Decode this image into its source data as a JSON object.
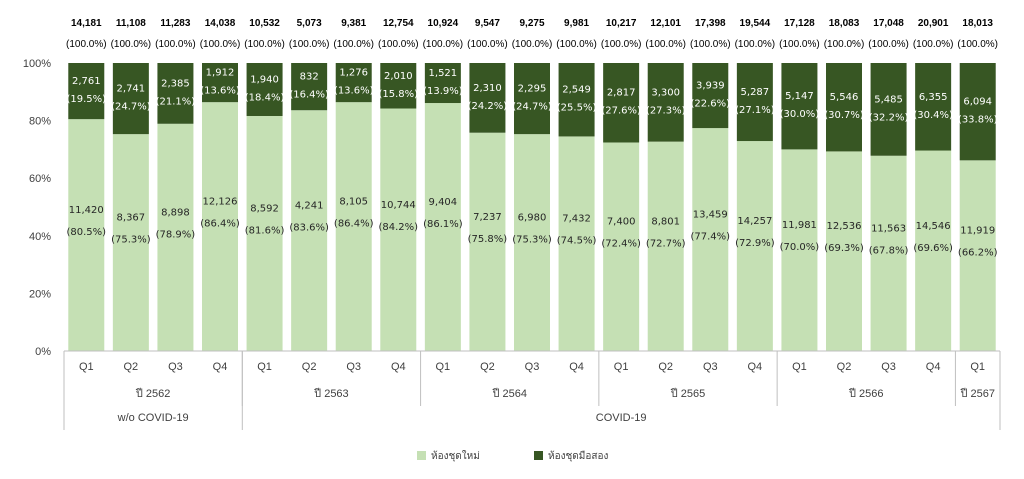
{
  "chart_data": {
    "type": "bar",
    "stacked": "percent",
    "ylim": [
      0,
      100
    ],
    "yticks": [
      "0%",
      "20%",
      "40%",
      "60%",
      "80%",
      "100%"
    ],
    "grid": false,
    "legend_position": "bottom",
    "categories": [
      "Q1",
      "Q2",
      "Q3",
      "Q4",
      "Q1",
      "Q2",
      "Q3",
      "Q4",
      "Q1",
      "Q2",
      "Q3",
      "Q4",
      "Q1",
      "Q2",
      "Q3",
      "Q4",
      "Q1",
      "Q2",
      "Q3",
      "Q4",
      "Q1"
    ],
    "year_groups": [
      {
        "label": "ปี 2562",
        "span": 4
      },
      {
        "label": "ปี 2563",
        "span": 4
      },
      {
        "label": "ปี 2564",
        "span": 4
      },
      {
        "label": "ปี 2565",
        "span": 4
      },
      {
        "label": "ปี 2566",
        "span": 4
      },
      {
        "label": "ปี 2567",
        "span": 1
      }
    ],
    "period_groups": [
      {
        "label": "w/o COVID-19",
        "span": 4
      },
      {
        "label": "COVID-19",
        "span": 17
      }
    ],
    "totals": [
      "14,181",
      "11,108",
      "11,283",
      "14,038",
      "10,532",
      "5,073",
      "9,381",
      "12,754",
      "10,924",
      "9,547",
      "9,275",
      "9,981",
      "10,217",
      "12,101",
      "17,398",
      "19,544",
      "17,128",
      "18,083",
      "17,048",
      "20,901",
      "18,013"
    ],
    "total_pct_label": "(100.0%)",
    "series": [
      {
        "name": "ห้องชุดใหม่",
        "color": "#c5e0b4",
        "values": [
          11420,
          8367,
          8898,
          12126,
          8592,
          4241,
          8105,
          10744,
          9404,
          7237,
          6980,
          7432,
          7400,
          8801,
          13459,
          14257,
          11981,
          12536,
          11563,
          14546,
          11919
        ],
        "labels": [
          "11,420",
          "8,367",
          "8,898",
          "12,126",
          "8,592",
          "4,241",
          "8,105",
          "10,744",
          "9,404",
          "7,237",
          "6,980",
          "7,432",
          "7,400",
          "8,801",
          "13,459",
          "14,257",
          "11,981",
          "12,536",
          "11,563",
          "14,546",
          "11,919"
        ],
        "pct": [
          80.5,
          75.3,
          78.9,
          86.4,
          81.6,
          83.6,
          86.4,
          84.2,
          86.1,
          75.8,
          75.3,
          74.5,
          72.4,
          72.7,
          77.4,
          72.9,
          70.0,
          69.3,
          67.8,
          69.6,
          66.2
        ],
        "pct_labels": [
          "(80.5%)",
          "(75.3%)",
          "(78.9%)",
          "(86.4%)",
          "(81.6%)",
          "(83.6%)",
          "(86.4%)",
          "(84.2%)",
          "(86.1%)",
          "(75.8%)",
          "(75.3%)",
          "(74.5%)",
          "(72.4%)",
          "(72.7%)",
          "(77.4%)",
          "(72.9%)",
          "(70.0%)",
          "(69.3%)",
          "(67.8%)",
          "(69.6%)",
          "(66.2%)"
        ]
      },
      {
        "name": "ห้องชุดมือสอง",
        "color": "#375623",
        "values": [
          2761,
          2741,
          2385,
          1912,
          1940,
          832,
          1276,
          2010,
          1521,
          2310,
          2295,
          2549,
          2817,
          3300,
          3939,
          5287,
          5147,
          5546,
          5485,
          6355,
          6094
        ],
        "labels": [
          "2,761",
          "2,741",
          "2,385",
          "1,912",
          "1,940",
          "832",
          "1,276",
          "2,010",
          "1,521",
          "2,310",
          "2,295",
          "2,549",
          "2,817",
          "3,300",
          "3,939",
          "5,287",
          "5,147",
          "5,546",
          "5,485",
          "6,355",
          "6,094"
        ],
        "pct": [
          19.5,
          24.7,
          21.1,
          13.6,
          18.4,
          16.4,
          13.6,
          15.8,
          13.9,
          24.2,
          24.7,
          25.5,
          27.6,
          27.3,
          22.6,
          27.1,
          30.0,
          30.7,
          32.2,
          30.4,
          33.8
        ],
        "pct_labels": [
          "(19.5%)",
          "(24.7%)",
          "(21.1%)",
          "(13.6%)",
          "(18.4%)",
          "(16.4%)",
          "(13.6%)",
          "(15.8%)",
          "(13.9%)",
          "(24.2%)",
          "(24.7%)",
          "(25.5%)",
          "(27.6%)",
          "(27.3%)",
          "(22.6%)",
          "(27.1%)",
          "(30.0%)",
          "(30.7%)",
          "(32.2%)",
          "(30.4%)",
          "(33.8%)"
        ]
      }
    ]
  }
}
